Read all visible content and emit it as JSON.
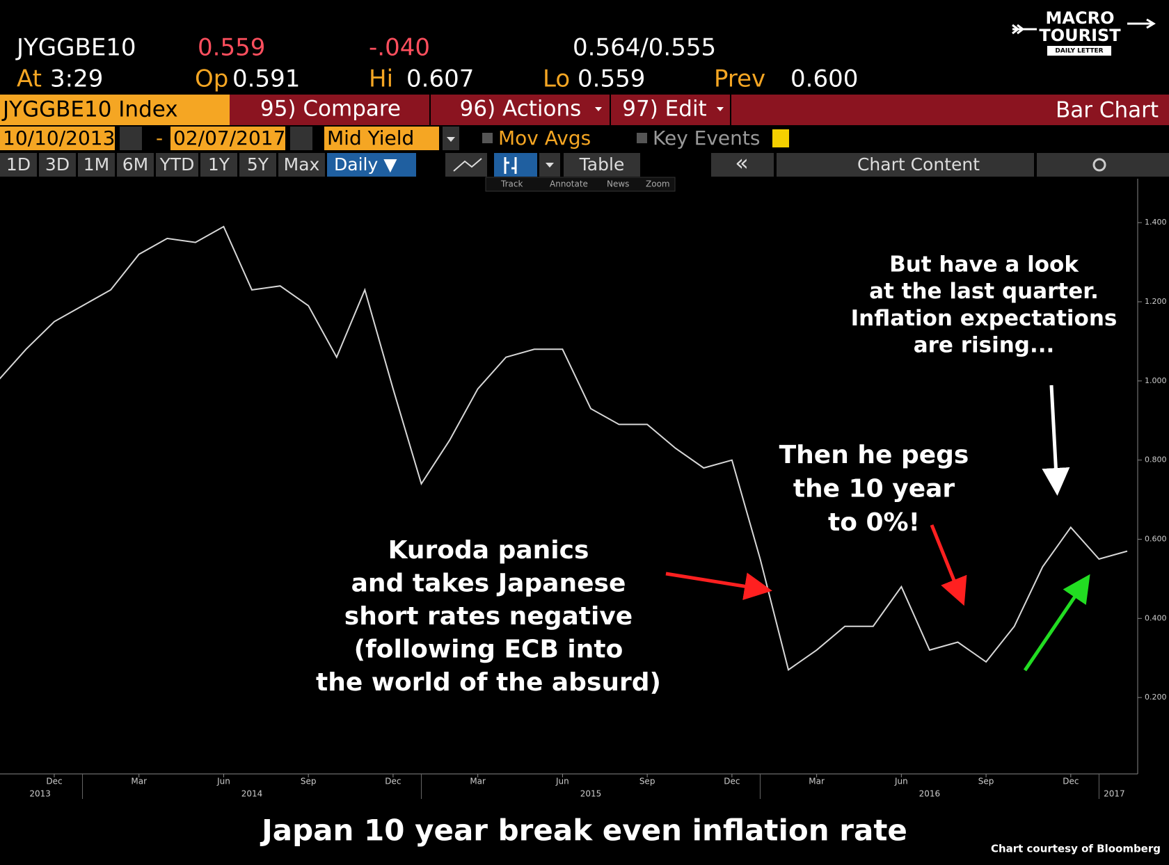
{
  "header": {
    "symbol": "JYGGBE10",
    "last": "0.559",
    "change": "-.040",
    "bid_ask": "0.564/0.555",
    "at_label": "At",
    "at": "3:29",
    "open_label": "Op",
    "open": "0.591",
    "high_label": "Hi",
    "high": "0.607",
    "low_label": "Lo",
    "low": "0.559",
    "prev_label": "Prev",
    "prev": "0.600"
  },
  "logo": {
    "line1": "MACRO",
    "line2": "TOURIST",
    "line3": "DAILY LETTER"
  },
  "menu": {
    "security": "JYGGBE10 Index",
    "compare": "95) Compare",
    "actions": "96) Actions",
    "edit": "97) Edit",
    "view": "Bar Chart"
  },
  "range": {
    "start": "10/10/2013",
    "dash": "-",
    "end": "02/07/2017",
    "field": "Mid Yield",
    "mov_avgs": "Mov Avgs",
    "key_events": "Key Events"
  },
  "periods": [
    "1D",
    "3D",
    "1M",
    "6M",
    "YTD",
    "1Y",
    "5Y",
    "Max"
  ],
  "frequency": "Daily ▼",
  "tools": {
    "table": "Table",
    "collapse": "«",
    "chart_content": "Chart Content"
  },
  "mini_tools": [
    "Track",
    "Annotate",
    "News",
    "Zoom"
  ],
  "chart_data": {
    "type": "line",
    "title": "Japan 10 year break even inflation rate",
    "source": "Chart courtesy of Bloomberg",
    "categories": [
      null,
      null,
      "Dec",
      null,
      null,
      "Mar",
      null,
      null,
      "Jun",
      null,
      null,
      "Sep",
      null,
      null,
      "Dec",
      null,
      null,
      "Mar",
      null,
      null,
      "Jun",
      null,
      null,
      "Sep",
      null,
      null,
      "Dec",
      null,
      null,
      "Mar",
      null,
      null,
      "Jun",
      null,
      null,
      "Sep",
      null,
      null,
      "Dec",
      null,
      null
    ],
    "years": [
      "2013",
      "2014",
      "2015",
      "2016",
      "2017"
    ],
    "values": [
      1.0,
      1.08,
      1.15,
      1.19,
      1.23,
      1.32,
      1.36,
      1.35,
      1.39,
      1.23,
      1.24,
      1.19,
      1.06,
      1.23,
      0.98,
      0.74,
      0.85,
      0.98,
      1.06,
      1.08,
      1.08,
      0.93,
      0.89,
      0.89,
      0.83,
      0.78,
      0.8,
      0.55,
      0.27,
      0.32,
      0.38,
      0.38,
      0.48,
      0.32,
      0.34,
      0.29,
      0.38,
      0.53,
      0.63,
      0.55,
      0.57
    ],
    "color": "#d8d8d8",
    "ylim": [
      0.007,
      1.511
    ],
    "yticks": [
      {
        "value": 0.2,
        "label": "0.200"
      },
      {
        "value": 0.4,
        "label": "0.400"
      },
      {
        "value": 0.6,
        "label": "0.600"
      },
      {
        "value": 0.8,
        "label": "0.800"
      },
      {
        "value": 1.0,
        "label": "1.000"
      },
      {
        "value": 1.2,
        "label": "1.200"
      },
      {
        "value": 1.4,
        "label": "1.400"
      }
    ],
    "annotations": [
      [
        "Kuroda panics",
        "and takes Japanese",
        "short rates negative",
        "(following ECB into",
        "the world of the absurd)"
      ],
      [
        "Then he pegs",
        "the 10 year",
        "to 0%!"
      ],
      [
        "But have a look",
        "at the last quarter.",
        "Inflation expectations",
        "are rising..."
      ]
    ]
  }
}
